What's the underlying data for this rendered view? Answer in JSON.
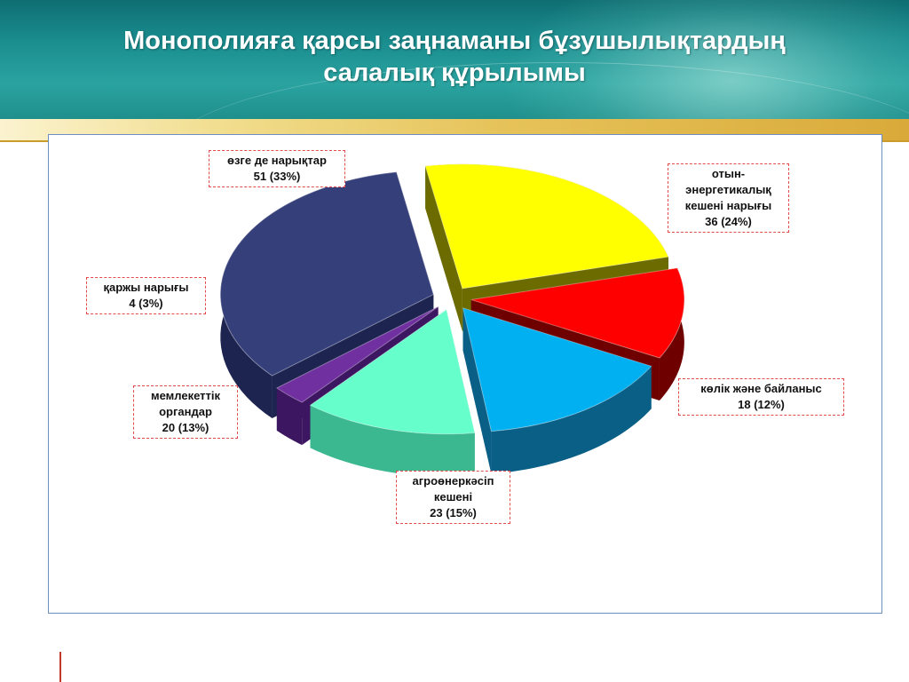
{
  "header": {
    "title_line1": "Монополияға қарсы заңнаманы бұзушылықтардың",
    "title_line2": "салалық құрылымы"
  },
  "chart_data": {
    "type": "pie",
    "slices": [
      {
        "name": "отын-энергетикалық кешені нарығы",
        "value": 36,
        "percent": 24,
        "value_label": "36 (24%)",
        "color": "#ffff00",
        "side_color": "#6b6b00"
      },
      {
        "name": "көлік және байланыс",
        "value": 18,
        "percent": 12,
        "value_label": "18 (12%)",
        "color": "#ff0000",
        "side_color": "#6e0000"
      },
      {
        "name": "агроөнеркәсіп кешені",
        "value": 23,
        "percent": 15,
        "value_label": "23 (15%)",
        "color": "#00b0f0",
        "side_color": "#0a5f86"
      },
      {
        "name": "мемлекеттік органдар",
        "value": 20,
        "percent": 13,
        "value_label": "20 (13%)",
        "color": "#66ffcc",
        "side_color": "#3bb890"
      },
      {
        "name": "қаржы нарығы",
        "value": 4,
        "percent": 3,
        "value_label": "4 (3%)",
        "color": "#7030a0",
        "side_color": "#3c1660"
      },
      {
        "name": "өзге де нарықтар",
        "value": 51,
        "percent": 33,
        "value_label": "51 (33%)",
        "color": "#353f7a",
        "side_color": "#1d2450"
      }
    ],
    "exploded": true,
    "style": "3d"
  }
}
